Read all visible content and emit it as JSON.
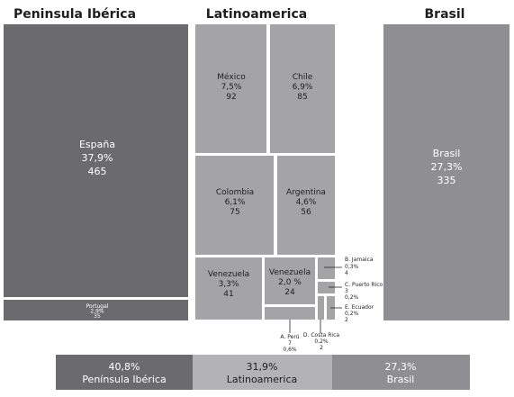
{
  "chart_data": {
    "type": "treemap",
    "groups": [
      {
        "name": "Península Ibérica",
        "heading": "Peninsula Ibérica",
        "items": [
          {
            "name": "España",
            "percent": "37,9%",
            "count": "465"
          },
          {
            "name": "Portugal",
            "percent": "2,9%",
            "count": "35"
          }
        ]
      },
      {
        "name": "Latinoamerica",
        "heading": "Latinoamerica",
        "items": [
          {
            "name": "México",
            "percent": "7,5%",
            "count": "92"
          },
          {
            "name": "Chile",
            "percent": "6,9%",
            "count": "85"
          },
          {
            "name": "Colombia",
            "percent": "6,1%",
            "count": "75"
          },
          {
            "name": "Argentina",
            "percent": "4,6%",
            "count": "56"
          },
          {
            "name": "Venezuela",
            "percent": "3,3%",
            "count": "41"
          },
          {
            "name": "Venezuela",
            "percent": "2,0 %",
            "count": "24"
          },
          {
            "name": "B. Jamaica",
            "percent": "0,3%",
            "count": "4"
          },
          {
            "name": "C. Puerto Rico",
            "percent": "0,2%",
            "count": "3"
          },
          {
            "name": "E. Ecuador",
            "percent": "0,2%",
            "count": "2"
          },
          {
            "name": "A. Perú",
            "percent": "0,6%",
            "count": "7"
          },
          {
            "name": "D. Costa Rica",
            "percent": "0,2%",
            "count": "2"
          }
        ]
      },
      {
        "name": "Brasil",
        "heading": "Brasil",
        "items": [
          {
            "name": "Brasil",
            "percent": "27,3%",
            "count": "335"
          }
        ]
      }
    ],
    "summary": [
      {
        "percent": "40,8%",
        "label": "Península Ibérica"
      },
      {
        "percent": "31,9%",
        "label": "Latinoamerica"
      },
      {
        "percent": "27,3%",
        "label": "Brasil"
      }
    ],
    "colors": {
      "iberia": "#6b6b6d",
      "latam": "#a4a4a6",
      "brasil": "#8f8f91",
      "summary_iberia": "#6b6b6d",
      "summary_latam": "#b3b3b5",
      "summary_brasil": "#8f8f91",
      "text_light": "#ffffff",
      "text_dark": "#1e1e1e"
    }
  }
}
